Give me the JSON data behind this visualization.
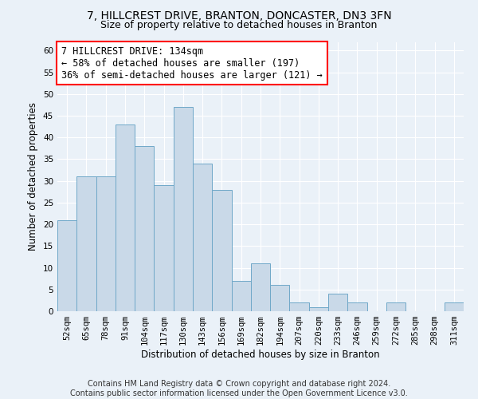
{
  "title": "7, HILLCREST DRIVE, BRANTON, DONCASTER, DN3 3FN",
  "subtitle": "Size of property relative to detached houses in Branton",
  "xlabel": "Distribution of detached houses by size in Branton",
  "ylabel": "Number of detached properties",
  "categories": [
    "52sqm",
    "65sqm",
    "78sqm",
    "91sqm",
    "104sqm",
    "117sqm",
    "130sqm",
    "143sqm",
    "156sqm",
    "169sqm",
    "182sqm",
    "194sqm",
    "207sqm",
    "220sqm",
    "233sqm",
    "246sqm",
    "259sqm",
    "272sqm",
    "285sqm",
    "298sqm",
    "311sqm"
  ],
  "values": [
    21,
    31,
    31,
    43,
    38,
    29,
    47,
    34,
    28,
    7,
    11,
    6,
    2,
    1,
    4,
    2,
    0,
    2,
    0,
    0,
    2
  ],
  "highlight_index": 6,
  "bar_color": "#c9d9e8",
  "bar_edge_color": "#6fa8c8",
  "background_color": "#eaf1f8",
  "grid_color": "#ffffff",
  "ylim": [
    0,
    62
  ],
  "yticks": [
    0,
    5,
    10,
    15,
    20,
    25,
    30,
    35,
    40,
    45,
    50,
    55,
    60
  ],
  "annotation_line1": "7 HILLCREST DRIVE: 134sqm",
  "annotation_line2": "← 58% of detached houses are smaller (197)",
  "annotation_line3": "36% of semi-detached houses are larger (121) →",
  "footer_line1": "Contains HM Land Registry data © Crown copyright and database right 2024.",
  "footer_line2": "Contains public sector information licensed under the Open Government Licence v3.0.",
  "title_fontsize": 10,
  "subtitle_fontsize": 9,
  "annotation_fontsize": 8.5,
  "axis_label_fontsize": 8.5,
  "tick_fontsize": 7.5,
  "footer_fontsize": 7
}
